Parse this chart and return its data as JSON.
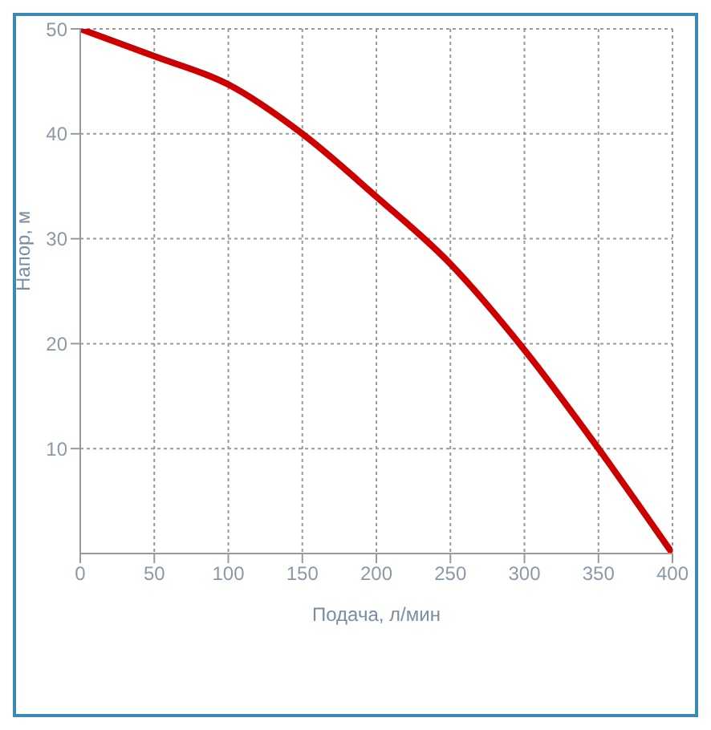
{
  "chart_data": {
    "type": "line",
    "xlabel": "Подача, л/мин",
    "ylabel": "Напор, м",
    "x": [
      0,
      50,
      100,
      150,
      200,
      250,
      300,
      350,
      400
    ],
    "series": [
      {
        "color": "#cc0000",
        "values": [
          50,
          47.4,
          44.7,
          40,
          34,
          27.6,
          19.4,
          10,
          0
        ]
      }
    ],
    "xlim": [
      0,
      400
    ],
    "xticks": [
      0,
      50,
      100,
      150,
      200,
      250,
      300,
      350,
      400
    ],
    "ylim": [
      0,
      50
    ],
    "yticks": [
      10,
      20,
      30,
      40,
      50
    ],
    "grid": true,
    "marker": "none",
    "line_style": "solid"
  }
}
